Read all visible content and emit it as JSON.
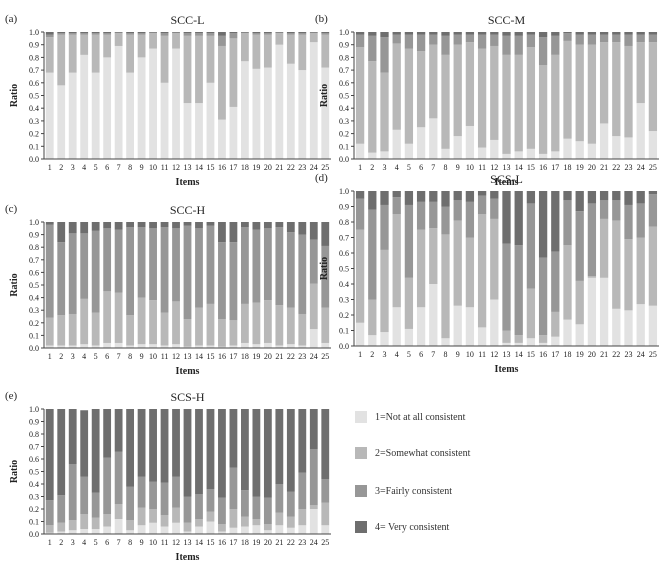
{
  "colors": {
    "level1": "#e2e2e2",
    "level2": "#b8b8b8",
    "level3": "#979797",
    "level4": "#6e6e6e",
    "axis": "#444444"
  },
  "legend": {
    "items": [
      {
        "label": "1=Not at all consistent",
        "color_key": "level1"
      },
      {
        "label": "2=Somewhat consistent",
        "color_key": "level2"
      },
      {
        "label": "3=Fairly consistent",
        "color_key": "level3"
      },
      {
        "label": "4= Very consistent",
        "color_key": "level4"
      }
    ]
  },
  "chart_data": [
    {
      "type": "bar",
      "stacked": true,
      "panel": "(a)",
      "title": "SCC-L",
      "xlabel": "Items",
      "ylabel": "Ratio",
      "ylim": [
        0,
        1
      ],
      "yticks": [
        "0.0",
        "0.1",
        "0.2",
        "0.3",
        "0.4",
        "0.5",
        "0.6",
        "0.7",
        "0.8",
        "0.9",
        "1.0"
      ],
      "categories": [
        "1",
        "2",
        "3",
        "4",
        "5",
        "6",
        "7",
        "8",
        "9",
        "10",
        "11",
        "12",
        "13",
        "14",
        "15",
        "16",
        "17",
        "18",
        "19",
        "20",
        "21",
        "22",
        "23",
        "24",
        "25"
      ],
      "series": [
        {
          "name": "1=Not at all consistent",
          "values": [
            0.68,
            0.58,
            0.68,
            0.82,
            0.68,
            0.8,
            0.89,
            0.68,
            0.8,
            0.87,
            0.6,
            0.87,
            0.44,
            0.44,
            0.6,
            0.31,
            0.41,
            0.77,
            0.71,
            0.72,
            0.9,
            0.75,
            0.7,
            0.92,
            0.72
          ]
        },
        {
          "name": "2=Somewhat consistent",
          "values": [
            0.28,
            0.4,
            0.3,
            0.16,
            0.3,
            0.18,
            0.1,
            0.3,
            0.18,
            0.12,
            0.37,
            0.12,
            0.53,
            0.53,
            0.37,
            0.58,
            0.54,
            0.22,
            0.27,
            0.26,
            0.09,
            0.23,
            0.28,
            0.07,
            0.26
          ]
        },
        {
          "name": "3=Fairly consistent",
          "values": [
            0.02,
            0.01,
            0.01,
            0.01,
            0.01,
            0.01,
            0.005,
            0.01,
            0.01,
            0.005,
            0.02,
            0.005,
            0.02,
            0.02,
            0.02,
            0.08,
            0.04,
            0.005,
            0.01,
            0.01,
            0.005,
            0.01,
            0.01,
            0.005,
            0.01
          ]
        },
        {
          "name": "4= Very consistent",
          "values": [
            0.02,
            0.01,
            0.01,
            0.01,
            0.01,
            0.01,
            0.005,
            0.01,
            0.01,
            0.005,
            0.01,
            0.005,
            0.01,
            0.01,
            0.01,
            0.03,
            0.01,
            0.005,
            0.01,
            0.01,
            0.005,
            0.01,
            0.01,
            0.005,
            0.01
          ]
        }
      ]
    },
    {
      "type": "bar",
      "stacked": true,
      "panel": "(b)",
      "title": "SCC-M",
      "xlabel": "Items",
      "ylabel": "Ratio",
      "ylim": [
        0,
        1
      ],
      "yticks": [
        "0.0",
        "0.1",
        "0.2",
        "0.3",
        "0.4",
        "0.5",
        "0.6",
        "0.7",
        "0.8",
        "0.9",
        "1.0"
      ],
      "categories": [
        "1",
        "2",
        "3",
        "4",
        "5",
        "6",
        "7",
        "8",
        "9",
        "10",
        "11",
        "12",
        "13",
        "14",
        "15",
        "16",
        "17",
        "18",
        "19",
        "20",
        "21",
        "22",
        "23",
        "24",
        "25"
      ],
      "series": [
        {
          "name": "1=Not at all consistent",
          "values": [
            0.12,
            0.05,
            0.06,
            0.23,
            0.12,
            0.25,
            0.32,
            0.08,
            0.18,
            0.26,
            0.09,
            0.15,
            0.04,
            0.06,
            0.08,
            0.04,
            0.06,
            0.16,
            0.14,
            0.12,
            0.28,
            0.18,
            0.17,
            0.44,
            0.22
          ]
        },
        {
          "name": "2=Somewhat consistent",
          "values": [
            0.76,
            0.72,
            0.62,
            0.68,
            0.75,
            0.6,
            0.58,
            0.74,
            0.72,
            0.66,
            0.78,
            0.74,
            0.78,
            0.76,
            0.8,
            0.7,
            0.76,
            0.77,
            0.76,
            0.78,
            0.64,
            0.74,
            0.72,
            0.48,
            0.7
          ]
        },
        {
          "name": "3=Fairly consistent",
          "values": [
            0.1,
            0.2,
            0.28,
            0.07,
            0.11,
            0.13,
            0.08,
            0.15,
            0.08,
            0.06,
            0.11,
            0.09,
            0.15,
            0.15,
            0.1,
            0.22,
            0.15,
            0.06,
            0.08,
            0.08,
            0.06,
            0.06,
            0.09,
            0.06,
            0.06
          ]
        },
        {
          "name": "4= Very consistent",
          "values": [
            0.02,
            0.03,
            0.04,
            0.02,
            0.02,
            0.02,
            0.02,
            0.03,
            0.02,
            0.02,
            0.02,
            0.02,
            0.03,
            0.03,
            0.02,
            0.04,
            0.03,
            0.01,
            0.02,
            0.02,
            0.02,
            0.02,
            0.02,
            0.02,
            0.02
          ]
        }
      ]
    },
    {
      "type": "bar",
      "stacked": true,
      "panel": "(c)",
      "title": "SCC-H",
      "xlabel": "Items",
      "ylabel": "Ratio",
      "ylim": [
        0,
        1
      ],
      "yticks": [
        "0.0",
        "0.1",
        "0.2",
        "0.3",
        "0.4",
        "0.5",
        "0.6",
        "0.7",
        "0.8",
        "0.9",
        "1.0"
      ],
      "categories": [
        "1",
        "2",
        "3",
        "4",
        "5",
        "6",
        "7",
        "8",
        "9",
        "10",
        "11",
        "12",
        "13",
        "14",
        "15",
        "16",
        "17",
        "18",
        "19",
        "20",
        "21",
        "22",
        "23",
        "24",
        "25"
      ],
      "series": [
        {
          "name": "1=Not at all consistent",
          "values": [
            0.02,
            0.02,
            0.02,
            0.03,
            0.02,
            0.04,
            0.04,
            0.02,
            0.03,
            0.03,
            0.02,
            0.03,
            0.01,
            0.02,
            0.02,
            0.01,
            0.02,
            0.04,
            0.03,
            0.04,
            0.02,
            0.03,
            0.02,
            0.15,
            0.04
          ]
        },
        {
          "name": "2=Somewhat consistent",
          "values": [
            0.22,
            0.24,
            0.25,
            0.36,
            0.26,
            0.41,
            0.4,
            0.24,
            0.37,
            0.35,
            0.26,
            0.34,
            0.22,
            0.3,
            0.33,
            0.22,
            0.2,
            0.31,
            0.33,
            0.34,
            0.32,
            0.29,
            0.25,
            0.36,
            0.28
          ]
        },
        {
          "name": "3=Fairly consistent",
          "values": [
            0.74,
            0.58,
            0.64,
            0.52,
            0.65,
            0.5,
            0.5,
            0.7,
            0.56,
            0.57,
            0.68,
            0.58,
            0.74,
            0.63,
            0.62,
            0.61,
            0.62,
            0.61,
            0.58,
            0.57,
            0.62,
            0.6,
            0.63,
            0.35,
            0.49
          ]
        },
        {
          "name": "4= Very consistent",
          "values": [
            0.02,
            0.16,
            0.09,
            0.09,
            0.07,
            0.05,
            0.06,
            0.04,
            0.04,
            0.05,
            0.04,
            0.05,
            0.03,
            0.05,
            0.03,
            0.16,
            0.16,
            0.04,
            0.06,
            0.05,
            0.04,
            0.08,
            0.1,
            0.14,
            0.19
          ]
        }
      ]
    },
    {
      "type": "bar",
      "stacked": true,
      "panel": "(d)",
      "title": "SCS-L",
      "xlabel": "Items",
      "ylabel": "Ratio",
      "ylim": [
        0,
        1
      ],
      "yticks": [
        "0.0",
        "0.1",
        "0.2",
        "0.3",
        "0.4",
        "0.5",
        "0.6",
        "0.7",
        "0.8",
        "0.9",
        "1.0"
      ],
      "categories": [
        "1",
        "2",
        "3",
        "4",
        "5",
        "6",
        "7",
        "8",
        "9",
        "10",
        "11",
        "12",
        "13",
        "14",
        "15",
        "16",
        "17",
        "18",
        "19",
        "20",
        "21",
        "22",
        "23",
        "24",
        "25"
      ],
      "series": [
        {
          "name": "1=Not at all consistent",
          "values": [
            0.15,
            0.07,
            0.09,
            0.25,
            0.11,
            0.25,
            0.4,
            0.05,
            0.26,
            0.25,
            0.12,
            0.3,
            0.02,
            0.02,
            0.05,
            0.02,
            0.06,
            0.17,
            0.14,
            0.44,
            0.44,
            0.24,
            0.23,
            0.27,
            0.26
          ]
        },
        {
          "name": "2=Somewhat consistent",
          "values": [
            0.6,
            0.23,
            0.53,
            0.6,
            0.33,
            0.5,
            0.36,
            0.67,
            0.55,
            0.45,
            0.73,
            0.52,
            0.08,
            0.05,
            0.32,
            0.05,
            0.16,
            0.48,
            0.28,
            0.01,
            0.38,
            0.57,
            0.46,
            0.43,
            0.51
          ]
        },
        {
          "name": "3=Fairly consistent",
          "values": [
            0.2,
            0.58,
            0.29,
            0.11,
            0.47,
            0.18,
            0.17,
            0.18,
            0.13,
            0.23,
            0.12,
            0.13,
            0.56,
            0.58,
            0.55,
            0.5,
            0.39,
            0.29,
            0.45,
            0.47,
            0.12,
            0.13,
            0.22,
            0.22,
            0.21
          ]
        },
        {
          "name": "4= Very consistent",
          "values": [
            0.05,
            0.12,
            0.09,
            0.04,
            0.09,
            0.07,
            0.07,
            0.1,
            0.06,
            0.07,
            0.03,
            0.05,
            0.34,
            0.35,
            0.08,
            0.43,
            0.39,
            0.06,
            0.13,
            0.08,
            0.06,
            0.06,
            0.09,
            0.08,
            0.02
          ]
        }
      ]
    },
    {
      "type": "bar",
      "stacked": true,
      "panel": "(e)",
      "title": "SCS-H",
      "xlabel": "Items",
      "ylabel": "Ratio",
      "ylim": [
        0,
        1
      ],
      "yticks": [
        "0.0",
        "0.1",
        "0.2",
        "0.3",
        "0.4",
        "0.5",
        "0.6",
        "0.7",
        "0.8",
        "0.9",
        "1.0"
      ],
      "categories": [
        "1",
        "2",
        "3",
        "4",
        "5",
        "6",
        "7",
        "8",
        "9",
        "10",
        "11",
        "12",
        "13",
        "14",
        "15",
        "16",
        "17",
        "18",
        "19",
        "20",
        "21",
        "22",
        "23",
        "24",
        "25"
      ],
      "series": [
        {
          "name": "1=Not at all consistent",
          "values": [
            0.01,
            0.02,
            0.03,
            0.04,
            0.04,
            0.06,
            0.12,
            0.03,
            0.07,
            0.09,
            0.06,
            0.09,
            0.02,
            0.06,
            0.1,
            0.02,
            0.05,
            0.06,
            0.07,
            0.03,
            0.07,
            0.05,
            0.07,
            0.2,
            0.07
          ]
        },
        {
          "name": "2=Somewhat consistent",
          "values": [
            0.06,
            0.07,
            0.08,
            0.12,
            0.09,
            0.1,
            0.12,
            0.08,
            0.14,
            0.11,
            0.09,
            0.12,
            0.07,
            0.06,
            0.08,
            0.06,
            0.15,
            0.08,
            0.05,
            0.05,
            0.1,
            0.09,
            0.13,
            0.03,
            0.18
          ]
        },
        {
          "name": "3=Fairly consistent",
          "values": [
            0.2,
            0.22,
            0.45,
            0.3,
            0.2,
            0.45,
            0.42,
            0.27,
            0.25,
            0.22,
            0.26,
            0.25,
            0.21,
            0.2,
            0.18,
            0.21,
            0.33,
            0.21,
            0.18,
            0.21,
            0.23,
            0.2,
            0.29,
            0.45,
            0.19
          ]
        },
        {
          "name": "4= Very consistent",
          "values": [
            0.73,
            0.69,
            0.44,
            0.53,
            0.67,
            0.39,
            0.34,
            0.62,
            0.54,
            0.58,
            0.59,
            0.54,
            0.7,
            0.68,
            0.64,
            0.71,
            0.47,
            0.65,
            0.7,
            0.71,
            0.6,
            0.66,
            0.51,
            0.32,
            0.56
          ]
        }
      ]
    }
  ]
}
